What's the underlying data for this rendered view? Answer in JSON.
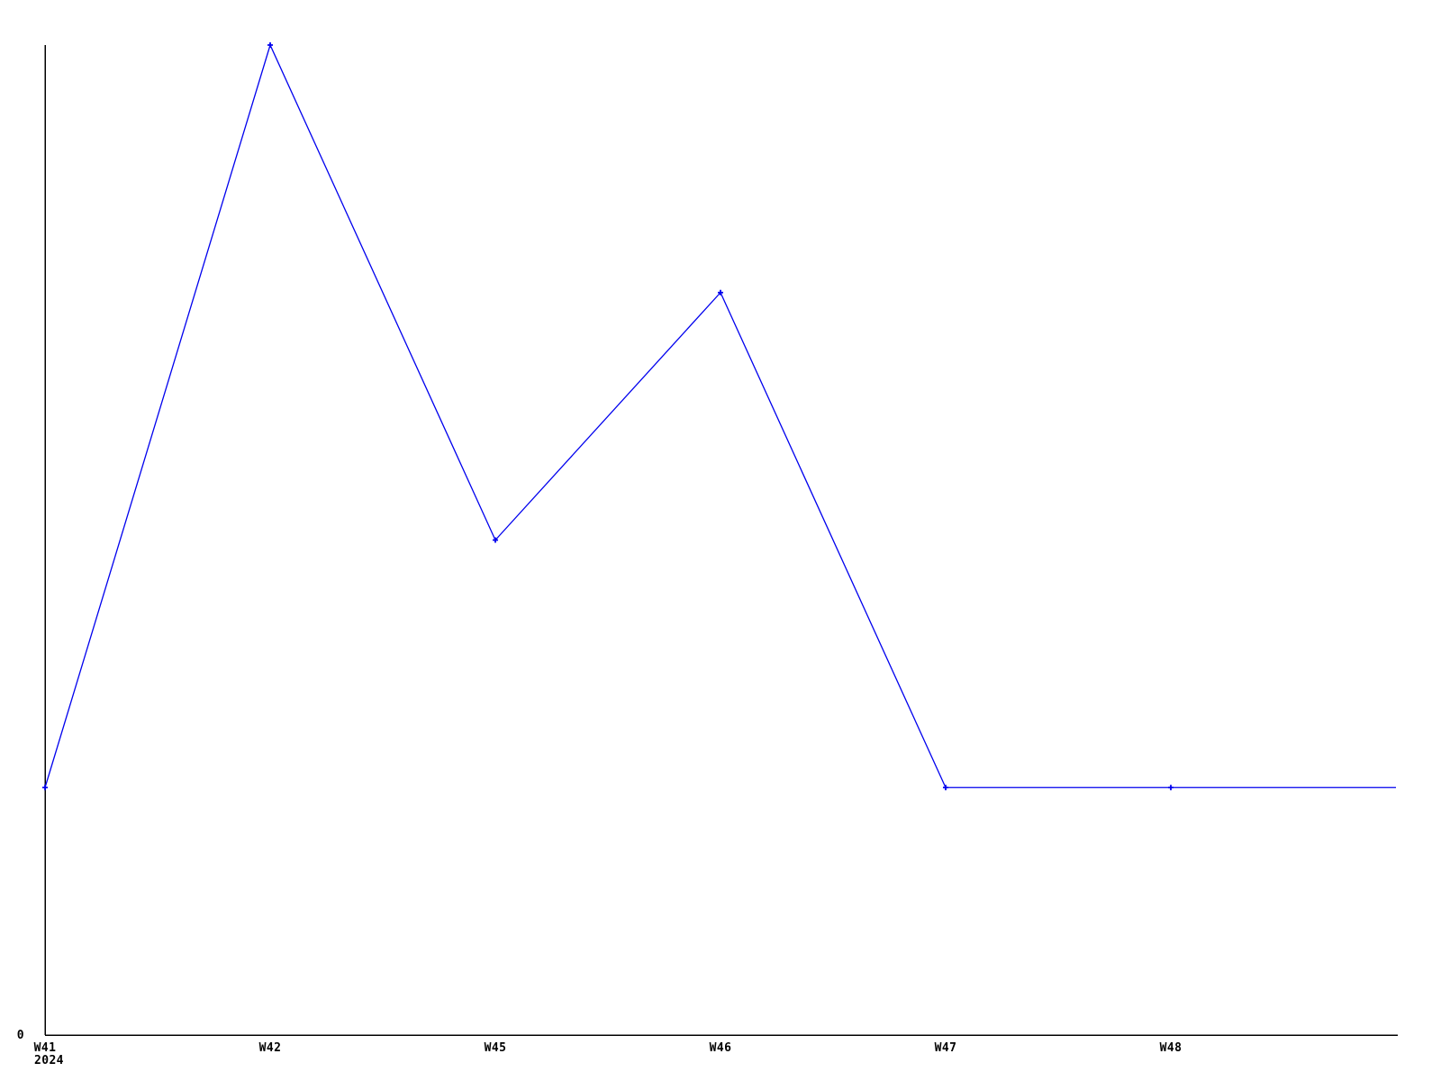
{
  "chart_data": {
    "type": "line",
    "title": "",
    "categories": [
      "W41",
      "W42",
      "W45",
      "W46",
      "W47",
      "W48",
      ""
    ],
    "x_axis_year_label": "2024",
    "y_tick_labels": [
      {
        "value": 0,
        "label": "0"
      }
    ],
    "series": [
      {
        "color": "#0000ee",
        "values": [
          1,
          4,
          2,
          3,
          1,
          1,
          1
        ],
        "marker": "plus",
        "show_marker": [
          true,
          true,
          true,
          true,
          true,
          true,
          false
        ]
      }
    ],
    "ylim": [
      0,
      4
    ],
    "grid": false,
    "legend": "none",
    "axis_color": "#000000",
    "background_color": "#ffffff"
  }
}
